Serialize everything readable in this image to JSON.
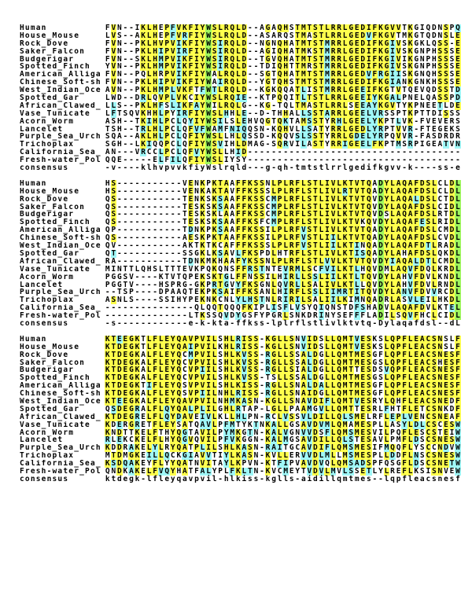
{
  "palette": {
    "match": "#FFFF4D",
    "similar": "#9FF7F7",
    "conserved": "#9FF75F",
    "plain": "#FFFFFF",
    "text": "#000000"
  },
  "similarity_groups": [
    "AVILMF",
    "FYWH",
    "KRH",
    "DENQ",
    "ST",
    "AG"
  ],
  "alignment": {
    "names": [
      "Human",
      "House_Mouse",
      "Rock_Dove",
      "Saker_Falcon",
      "Budgerigar",
      "Spotted_Finch",
      "American_Alliga",
      "Chinese_Soft-sh",
      "West_Indian_Oce",
      "Spotted_Gar",
      "African_Clawed_",
      "Vase_Tunicate",
      "Acorn_Worm",
      "Lancelet",
      "Purple_Sea_Urch",
      "Trichoplax",
      "California_Sea_",
      "Fresh-water_Pol",
      "consensus"
    ],
    "blocks": [
      [
        "FVN--IKLHEPFVKFIYWSLRQLD--AGAQHSTMTSTLRRLGEDIFKGVVTKGIQDNSPQ",
        "LVS--AKLHEPFVRFIYWSLRQLD--ASARQSTMASTLRRLGEDVFKGVTMKGTQDNSLE",
        "FVN--PKLHVPVIKFIYWSIRQLD--NGNQHATMTSTMRRLGEDIFKGIVSKGKLQSS-E",
        "FVN--PKLHIPVIRFIYWSIRQLD--AGIQHATMKSTMRRLGEDIFKGIVSKGNPHSSSE",
        "FVN--SKLHMPVIKFIYWSIRQLD--TGVQHATMTSTMRRLGEDIFKGIVIKGNPHSSSE",
        "YVN--PKLHMPVIKFIYWSIRQLD--TDIQHTTMRSTMRRLGEDIFKGIVSKGNPHSSSE",
        "FVN--PQLHRPVIKFIYWALRQLD--SGTQHATMTSTMRRLGEDVFRGIISKGNQHSSSE",
        "FVN--PKLHIPVIKFIYWAIRQLD--YGTQHSTMTSTMRRLGEDIFKGIANKGNKHSSSE",
        "AVN--PKLHMPLVKFTFWTLRQLD--KGKQQATLISTMRRLGEEIFKGTVTQEVQDSSTD",
        "LWD--DRLQVPLVKCIYWSLRQIE--KTPQQITLTSTLRRLGEEIYKGALPNELQASSPD",
        "LLS--PKLHFSLIKFAYWILRQLG--KG-TQLTMASTLRRLSEEAYKGVTYKPNEETLDE",
        "LFTSQVKHHLPYIRFIYWSLHHLE--D-THHALLSSTARRLGEELVRSSPTKPTTDISSS",
        "ASH--TKIHLPCLQYIYWSILSLEHVQGTQKTAMSSTYRHLGEELYKPTLVK-FVEVERS",
        "TSH--TRLHLPCLQFVFWAMFNIQQSN-KQHVLLSATYRRLGEDLYRPTVVR-FTEGEKS",
        "SQA--AKLHLPCLQFIYWSLLHLQSSD-KQQVSLSSTYRRLGDELYRPQVVR-FASDRDR",
        "SGH--LKIQQPCLQFIYWSVIHLDMAG-SQRVILASTYRRIGEELFKPTMSRPIGEATVN",
        "AN---VRCCLPCLQFVYWSLLHID------------------------------------",
        "QQE-----ELFILQFIYWSLIYSY------------------------------------",
        "-v----klhvpvvkfiyWslrqld---g-qh-tmtstlrrlgedifkgvv-k----ss-e"
      ],
      [
        "HS-----------VENKPKTAAFFKSSNLPLRFLSTLIVLKTVTQADYLAQAFDSLCLDL",
        "HS-----------VENKAKTAVFFKSSSLPLRFLSTLIVLRTVTQADYLAQAFDSLCLDL",
        "QS-----------TENKSKSAAFFKSSCMPLRFLSTLIVLKTVTQVDYLAQALDSLCTDL",
        "QS-----------TESKSKSAAFFKSSCMPLRFLSTLIVLKTVTQVDYLAQAFDSLCIDL",
        "QS-----------TESKSKLAAFFKSSCMPLRFLSTLIVLKTVTQVDSLAQAFDSLRTDL",
        "QS-----------TESKSKSAAFFKSFCMPLRFLSTLIVLKTVKQVDYLAQAFESLRIDL",
        "QP-----------TDNKPKSAAFFKSSILPLRFVSTLIVLKTVTQADYLAQAFDSLCMDL",
        "QS-----------AESKPKTAAFFKSSILPLRFVSTLIILKTVTQADYLAQAFDSLCVDL",
        "QV-----------AKTKTKCAFFFKSSSLPLRFVSTLIILKTINQADYLAQAFDTLRADL",
        "QT-----------SSGKLKSAVLFKSPDLHTRFLSTLIVLKTISQADYLAHAFDSLQKDL",
        "RA-----------TDNKMKHAAFYKSSNLPLRFLSTLVVLKTVTQVDYIAQALDTLCMDL",
        "MINTTLQHSLTTTEVKPQKQNSFFRSTNTEVRMLSCFVILKTLHQVDMLAQVFDQLKRDL",
        "PGGSV----KTVTQPEKSKTGLFFNSSILHIRLLSSLIILKTLTQVDYLAHVFDVLKNDL",
        "PGGTV----HSPRG-GKPRTGVYFKSGNLQVRLLSALIVLKTLLQVDYLAHVFDVLRNDL",
        "--TSP----DPAAQTEKPKSAIFFKSANLHIRFLSSLIIMRTITQVDYLANVFDVVRCDL",
        "ASNLS----SSIHYPEKNKCNLYLHSTNLRIRILSALIILKIMNQADRLASVLEILHKDL",
        "---------------QLQQTQQQFKIPLISFLVSYQIQNSTDFSHADVLAQAFDVLKTEL",
        "--------------LTKSSQVDYGSFYPGRLSNKDRINYSEFFFLADILSQVFHCLCIDL",
        "-s------------e-k-kta-ffkss-lplrflstlivlktvtq-Dylaqafdsl--dL"
      ],
      [
        "KTEEGKTLFLEYQAVPVILSHLRISS-KGLLSNVIDSLLQMTVESKSLQPFLEACSNSLF",
        "KTDEGKTLFLEYQAIPVILKHLRISS-KGLLSNVIDSLLQMTVESKSLQPFLEACSNSLF",
        "KTDEGKALFLEYQCMPVILSHLKVSS-RGLLSSALDGLLQMTMESGFLQPFLEACSNESF",
        "KTDEGKALFLEYQCVPVILSHLKVSS-RGLLSSALDGLLQMTMESGSLQPFLEACSHESF",
        "KTDEGKALFLEYQCVPIILSHLKVSS-RGLLSIALDGLLQMTTESDSVQPFLEACSNESF",
        "KTDEGKALFLEYQCVPVILSHLKVSS-TSLLSSALDGLLQMTMESGSLQPFLEACSNESF",
        "KTDEGKTIFLEYQSVPVILSHLKISS-RGLLSNALDALLQMTMESGFLQPFLEACSNESF",
        "KTDEGKALFLEYQSVPIILNHLRISS-RGLLSNAIDGLLQMTMESGFLQPFLEACSNESF",
        "KTEEGKALFLEYQAVPVILNHMKASN-KGLLSNAVDIFLQMTVESRYLQHFLEACSNEDF",
        "QSDEGRALFLQYQALPLILGHLRTAP-LGLLPAAMGVLLQMTTESRLFHTFLETCSNKDF",
        "KTDEGRELFLQYDAVEIVLKLLHLPN-RCLVSSVLDILLQLSMELRFLEPLVENCSNEAF",
        "KDERGRETFLEYSATQAVLPFMTYKTNKALLGSAVDVMLQMAMESPLLASYLDLCSCESW",
        "KNDTTKELFTHYQGTAVILPYMKGTN-KALVGNVVDSFLQMSMESVILPQFLESCSTEIW",
        "RLEKCKELFLHYQGVQVILPFVKGGN-KALMGSAVDILLQLSTESAVLPMFLDSCSNESW",
        "KDDRAKELYLRYQATPLILSHLKASN-RAITGCAVDIFLQMSMESIFMQQFLYSCCNDVW",
        "MTDMGKEILLQCKGIAVVTIYLKASN-KVLLERVVDLMLLMSMESPLLDDFLNSCSNESW",
        "KSDQAKEYFLYYQATNVITAYLKPVN-KTFIPVAVDVQLQMSADSPFQSGFLDSCSNETW",
        "QNDKAKELFVQYHATFALYPLFKLTN-KVCMEYTVDVLMVLSSETLYLREFLKSISNVEW",
        "ktdegk-lfleyqavpvil-hlkiss-kglls-aidillqmtmes--lqpfleacsnesf"
      ]
    ]
  }
}
